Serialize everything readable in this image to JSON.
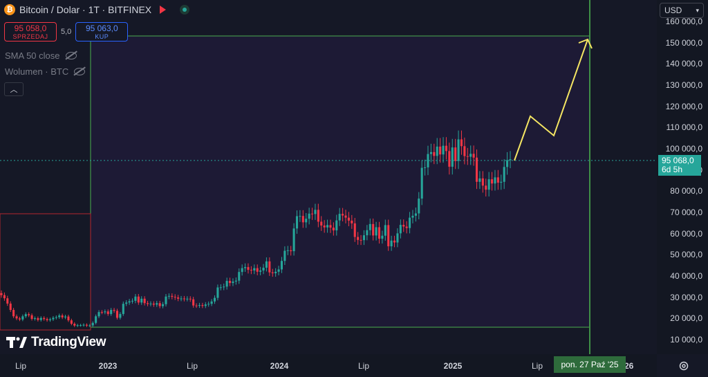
{
  "header": {
    "icon": "bitcoin-icon",
    "symbol_title": "Bitcoin / Dolar · 1T · BITFINEX"
  },
  "trade": {
    "sell_price": "95 058,0",
    "sell_label": "SPRZEDAJ",
    "spread": "5,0",
    "buy_price": "95 063,0",
    "buy_label": "KUP"
  },
  "indicators": {
    "sma": "SMA 50 close",
    "volume": "Wolumen · BTC"
  },
  "currency": {
    "selected": "USD"
  },
  "price_axis": {
    "ticks": [
      "160 000,0",
      "150 000,0",
      "140 000,0",
      "130 000,0",
      "120 000,0",
      "110 000,0",
      "100 000,0",
      "90 000,0",
      "80 000,0",
      "70 000,0",
      "60 000,0",
      "50 000,0",
      "40 000,0",
      "30 000,0",
      "20 000,0",
      "10 000,0"
    ],
    "tick_values": [
      160000,
      150000,
      140000,
      130000,
      120000,
      110000,
      100000,
      90000,
      80000,
      70000,
      60000,
      50000,
      40000,
      30000,
      20000,
      10000
    ]
  },
  "current_price": {
    "value": "95 068,0",
    "countdown": "6d 5h"
  },
  "time_axis": {
    "ticks": [
      {
        "label": "Lip",
        "bold": false
      },
      {
        "label": "2023",
        "bold": true
      },
      {
        "label": "Lip",
        "bold": false
      },
      {
        "label": "2024",
        "bold": true
      },
      {
        "label": "Lip",
        "bold": false
      },
      {
        "label": "2025",
        "bold": true
      },
      {
        "label": "Lip",
        "bold": false
      },
      {
        "label": "2026",
        "bold": true
      }
    ],
    "crosshair_date": "pon. 27 Paź '25"
  },
  "branding": {
    "name": "TradingView"
  },
  "colors": {
    "up": "#26a69a",
    "down": "#f23645",
    "projection": "#f5e663",
    "box_border": "#4caf50",
    "crosshair": "#3f8f46"
  },
  "chart_data": {
    "type": "candlestick",
    "title": "Bitcoin / Dolar · 1T · BITFINEX",
    "interval": "1 week",
    "ylim": [
      5000,
      167000
    ],
    "current_price": 95068,
    "series": [
      {
        "name": "BTC/USD",
        "weekly_closes_approx": [
          31000,
          29500,
          27000,
          24000,
          21000,
          20000,
          19500,
          21000,
          22000,
          21500,
          19800,
          20100,
          19300,
          20200,
          19700,
          19200,
          19600,
          20300,
          20600,
          21400,
          20500,
          20900,
          19100,
          17500,
          16600,
          16800,
          16800,
          17000,
          16600,
          16700,
          17900,
          21000,
          23000,
          22900,
          23300,
          22100,
          24000,
          23600,
          20300,
          22100,
          26900,
          27500,
          28100,
          28300,
          30300,
          27500,
          29300,
          27200,
          26800,
          27000,
          26500,
          27200,
          25800,
          26700,
          30300,
          30600,
          30200,
          29900,
          29300,
          29400,
          29200,
          29300,
          29000,
          26100,
          26000,
          26300,
          25900,
          26600,
          26900,
          28000,
          29700,
          34600,
          34700,
          35000,
          37700,
          36700,
          37400,
          37800,
          41900,
          43700,
          44200,
          42900,
          42600,
          43700,
          42000,
          42600,
          43900,
          46900,
          41700,
          41300,
          42000,
          43100,
          47100,
          51900,
          52100,
          51700,
          62400,
          68200,
          68300,
          65300,
          67000,
          69400,
          69200,
          71200,
          65600,
          63800,
          62900,
          64000,
          62800,
          61500,
          66200,
          69300,
          68500,
          67500,
          66100,
          64800,
          58400,
          57000,
          56900,
          59200,
          61600,
          64500,
          59100,
          63000,
          57600,
          59000,
          64000,
          54000,
          56700,
          55800,
          60100,
          64100,
          63300,
          62600,
          67500,
          68400,
          69500,
          76500,
          91000,
          91200,
          97500,
          98400,
          96600,
          101000,
          97300,
          101400,
          98900,
          91500,
          100600,
          94200,
          104400,
          101200,
          96500,
          96200,
          97600,
          95800,
          84400,
          86000,
          82600,
          80700,
          85600,
          83600,
          86500,
          84000,
          84400,
          91400,
          94600,
          95068
        ]
      }
    ],
    "box": {
      "price_top": 152000,
      "price_bottom": 16300,
      "date_left": "2022-12",
      "date_right": "2025-10-27"
    },
    "projection_path_prices": [
      95068,
      115500,
      106200,
      152500
    ]
  }
}
